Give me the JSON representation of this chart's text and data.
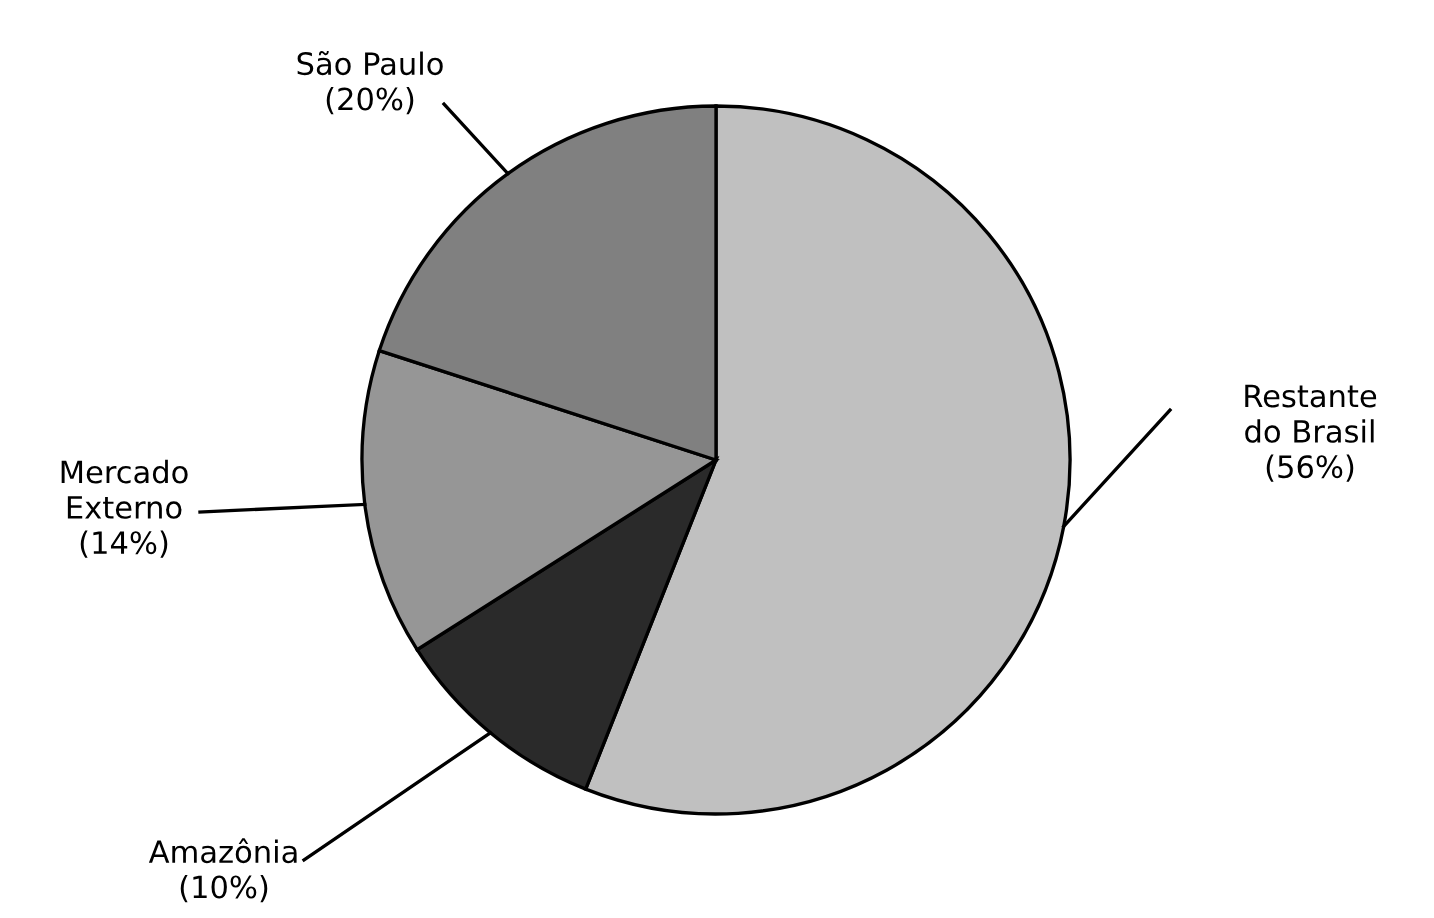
{
  "chart_data": {
    "type": "pie",
    "categories": [
      "Restante\ndo Brasil",
      "Amazônia",
      "Mercado\nExterno",
      "São Paulo"
    ],
    "values": [
      56,
      10,
      14,
      20
    ],
    "value_labels": [
      "(56%)",
      "(10%)",
      "(14%)",
      "(20%)"
    ],
    "colors": [
      "#c0c0c0",
      "#2a2a2a",
      "#969696",
      "#808080"
    ],
    "legend": false
  }
}
